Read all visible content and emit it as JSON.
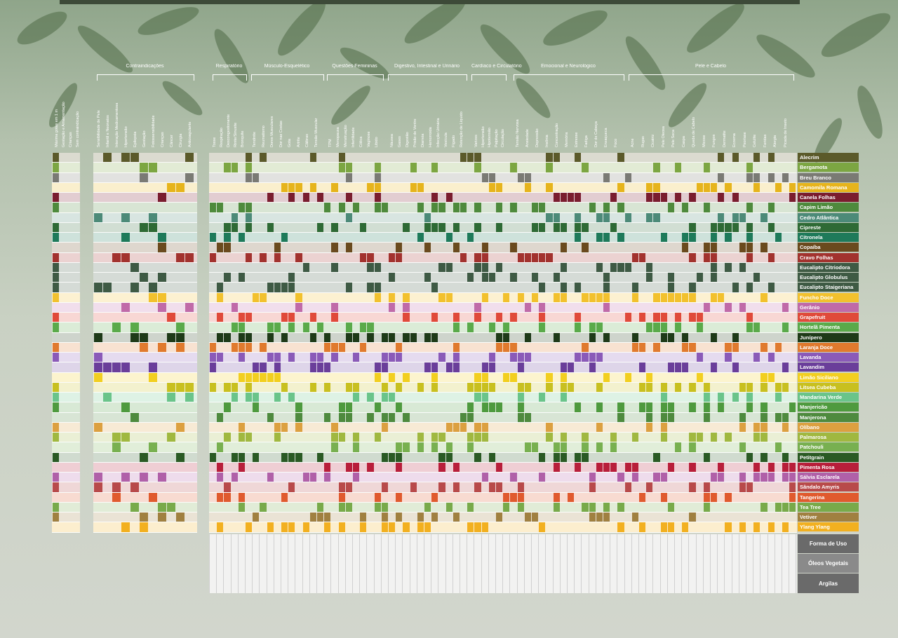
{
  "groups": [
    {
      "label": "Contraindicações"
    },
    {
      "label": "Respiratório"
    },
    {
      "label": "Músculo-Esquelético"
    },
    {
      "label": "Questões Femininas"
    },
    {
      "label": "Digestivo, Intestinal e Urinário"
    },
    {
      "label": "Cardíaco e Circulatório"
    },
    {
      "label": "Emocional e Neurológico"
    },
    {
      "label": "Pele e Cabelo"
    }
  ],
  "left_headers": [
    "Máxima gotas em 1 m",
    "Gestação e Amamentação",
    "Crianças",
    "Sem contraindicação"
  ],
  "contra_headers": [
    "Sensibilidade de Pele",
    "Infantil e Neonatos",
    "Interação Medicamentosa",
    "Hipertensão",
    "Epilepsia",
    "Gestação",
    "Fotossensibilidade",
    "Crianças",
    "Câncer",
    "Cirurgia",
    "Anticoagulante"
  ],
  "respir_headers": [
    "Tosse",
    "Respiração",
    "Descongestionante",
    "Rinite/Sinusite",
    "Bronquite"
  ],
  "musc_headers": [
    "Tendinite",
    "Reumatismo",
    "Dores Musculares",
    "Dor nas Costas",
    "Gota",
    "Artrite",
    "Cãibras",
    "Tensão Muscular"
  ],
  "fem_headers": [
    "TPM",
    "Menopausa",
    "Menstruação",
    "Infertilidade",
    "Cólica",
    "Vaginose",
    "Libido"
  ],
  "dig_headers": [
    "Náusea",
    "Gases",
    "Digestão",
    "Prisão de Ventre",
    "Diarreia",
    "Hemorroida",
    "Infecção Urinária",
    "Vesícula",
    "Fígado",
    "Retenção de Líquido"
  ],
  "card_headers": [
    "Varizes",
    "Hipertensão",
    "Hipotensão",
    "Palpitação",
    "Circulação"
  ],
  "emo_headers": [
    "Tensão Nervosa",
    "Ansiedade",
    "Depressão",
    "Insônia",
    "Concentração",
    "Memória",
    "Estresse",
    "Fadiga",
    "Dor de Cabeça",
    "Enxaqueca",
    "Foco"
  ],
  "pele_headers": [
    "Acne",
    "Rugas",
    "Cicatriz",
    "Pele Oleosa",
    "Pele Seca",
    "Caspa",
    "Queda de Cabelo",
    "Micose",
    "Fungos",
    "Dermatite",
    "Eczema",
    "Psoríase",
    "Celulite",
    "Feridas",
    "Alergia",
    "Picada de Inseto"
  ],
  "oils": [
    {
      "name": "Alecrim",
      "color": "#5b5a2a",
      "cells": "2;1",
      "n": 2
    },
    {
      "name": "Bergamota",
      "color": "#7ca642",
      "cells": "1;3",
      "n": 2
    },
    {
      "name": "Breu Branco",
      "color": "#7a7a74",
      "cells": "",
      "n": 2
    },
    {
      "name": "Camomila Romana",
      "color": "#e6b41c",
      "cells": "",
      "n": 2
    },
    {
      "name": "Canela Folhas",
      "color": "#7a1d2e",
      "cells": "1;1",
      "n": 1
    },
    {
      "name": "Capim Limão",
      "color": "#4e8a3c",
      "cells": "",
      "n": 1
    },
    {
      "name": "Cedro Atlântica",
      "color": "#4c8a78",
      "cells": "",
      "n": 2
    },
    {
      "name": "Cipreste",
      "color": "#2e6a35",
      "cells": "",
      "n": 2
    },
    {
      "name": "Citronela",
      "color": "#1e7a5a",
      "cells": "",
      "n": 2
    },
    {
      "name": "Copaíba",
      "color": "#6a4a1e",
      "cells": "",
      "n": 2
    },
    {
      "name": "Cravo Folhas",
      "color": "#a2322e",
      "cells": "",
      "n": 1
    },
    {
      "name": "Eucalipto Citriodora",
      "color": "#3e5a44",
      "cells": "",
      "n": 2
    },
    {
      "name": "Eucalipto Globulus",
      "color": "#3e5a44",
      "cells": "",
      "n": 2
    },
    {
      "name": "Eucalipto Staigeriana",
      "color": "#3e5a44",
      "cells": "",
      "n": 2
    },
    {
      "name": "Funcho Doce",
      "color": "#f2c12e",
      "cells": "",
      "n": 4
    },
    {
      "name": "Gerânio",
      "color": "#c06aa8",
      "cells": "",
      "n": 2
    },
    {
      "name": "Grapefruit",
      "color": "#e04a3a",
      "cells": "",
      "n": 2
    },
    {
      "name": "Hortelã Pimenta",
      "color": "#5aaa4a",
      "cells": "",
      "n": 1
    },
    {
      "name": "Junípero",
      "color": "#1e3a18",
      "cells": "",
      "n": 2
    },
    {
      "name": "Laranja Doce",
      "color": "#e07a2e",
      "cells": "",
      "n": 2
    },
    {
      "name": "Lavanda",
      "color": "#8a5ab8",
      "cells": "",
      "n": 2
    },
    {
      "name": "Lavandim",
      "color": "#6a3e9a",
      "cells": "",
      "n": 1
    },
    {
      "name": "Limão Siciliano",
      "color": "#f2cf20",
      "cells": "",
      "n": 2
    },
    {
      "name": "Litsea Cubeba",
      "color": "#c8c020",
      "cells": "",
      "n": 2
    },
    {
      "name": "Mandarina Verde",
      "color": "#6ac48a",
      "cells": "",
      "n": 2
    },
    {
      "name": "Manjericão",
      "color": "#4e9a3e",
      "cells": "",
      "n": 2
    },
    {
      "name": "Manjerona",
      "color": "#4e8a3e",
      "cells": "",
      "n": 2
    },
    {
      "name": "Olíbano",
      "color": "#dca040",
      "cells": "",
      "n": 2
    },
    {
      "name": "Palmarosa",
      "color": "#a0b840",
      "cells": "",
      "n": 2
    },
    {
      "name": "Patchouli",
      "color": "#78b050",
      "cells": "",
      "n": 2
    },
    {
      "name": "Petitgrain",
      "color": "#2a5a24",
      "cells": "",
      "n": 2
    },
    {
      "name": "Pimenta Rosa",
      "color": "#b81e3a",
      "cells": "",
      "n": 2
    },
    {
      "name": "Sálvia Esclarela",
      "color": "#b060a8",
      "cells": "",
      "n": 2
    },
    {
      "name": "Sândalo Amyris",
      "color": "#b84a4a",
      "cells": "",
      "n": 2
    },
    {
      "name": "Tangerina",
      "color": "#e05a2e",
      "cells": "",
      "n": 2
    },
    {
      "name": "Tea Tree",
      "color": "#78aa4a",
      "cells": "",
      "n": 2
    },
    {
      "name": "Vetiver",
      "color": "#a08040",
      "cells": "",
      "n": 2
    },
    {
      "name": "Ylang Ylang",
      "color": "#f2b020",
      "cells": "",
      "n": 2
    }
  ],
  "footer": {
    "uso": "Forma de Uso",
    "oleos": "Óleos Vegetais",
    "argilas": "Argilas"
  }
}
